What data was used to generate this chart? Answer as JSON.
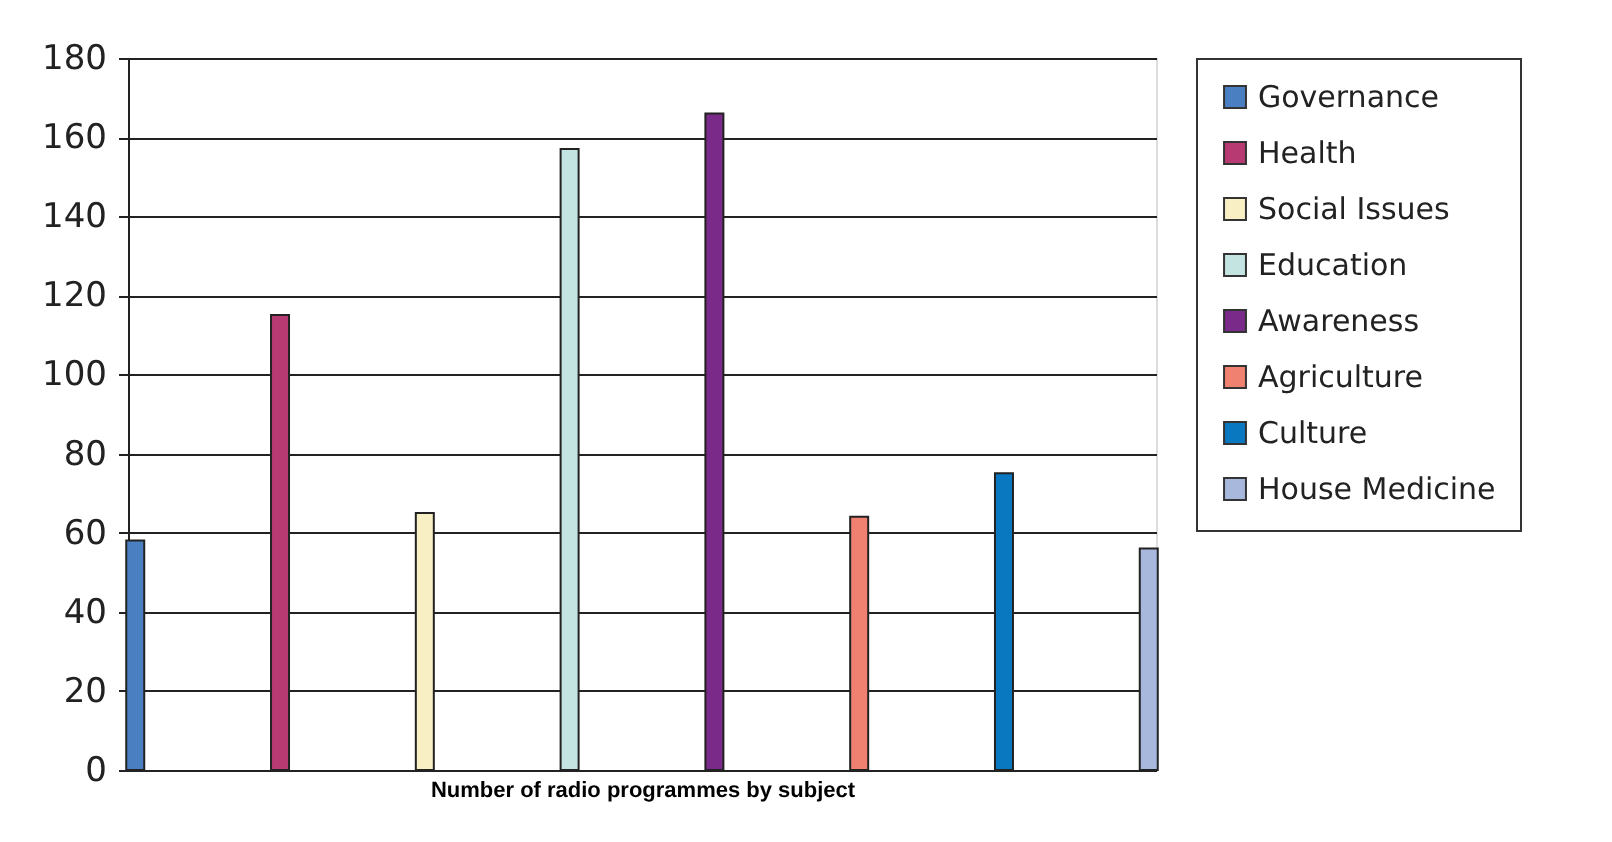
{
  "chart_data": {
    "type": "bar",
    "xlabel": "Number of radio programmes by subject",
    "categories": [
      null
    ],
    "series": [
      {
        "name": "Governance",
        "color": "#4a7fc1",
        "values": [
          58
        ]
      },
      {
        "name": "Health",
        "color": "#b83a72",
        "values": [
          115
        ]
      },
      {
        "name": "Social Issues",
        "color": "#f8f0c4",
        "values": [
          65
        ]
      },
      {
        "name": "Education",
        "color": "#c4e4e2",
        "values": [
          157
        ]
      },
      {
        "name": "Awareness",
        "color": "#7a2a88",
        "values": [
          166
        ]
      },
      {
        "name": "Agriculture",
        "color": "#f08070",
        "values": [
          64
        ]
      },
      {
        "name": "Culture",
        "color": "#0a78c0",
        "values": [
          75
        ]
      },
      {
        "name": "House Medicine",
        "color": "#a8b8dc",
        "values": [
          56
        ]
      }
    ],
    "ylim": [
      0,
      180
    ],
    "yticks": [
      0,
      20,
      40,
      60,
      80,
      100,
      120,
      140,
      160,
      180
    ],
    "grid": "y",
    "legend": "right",
    "tick_labels": "y"
  }
}
